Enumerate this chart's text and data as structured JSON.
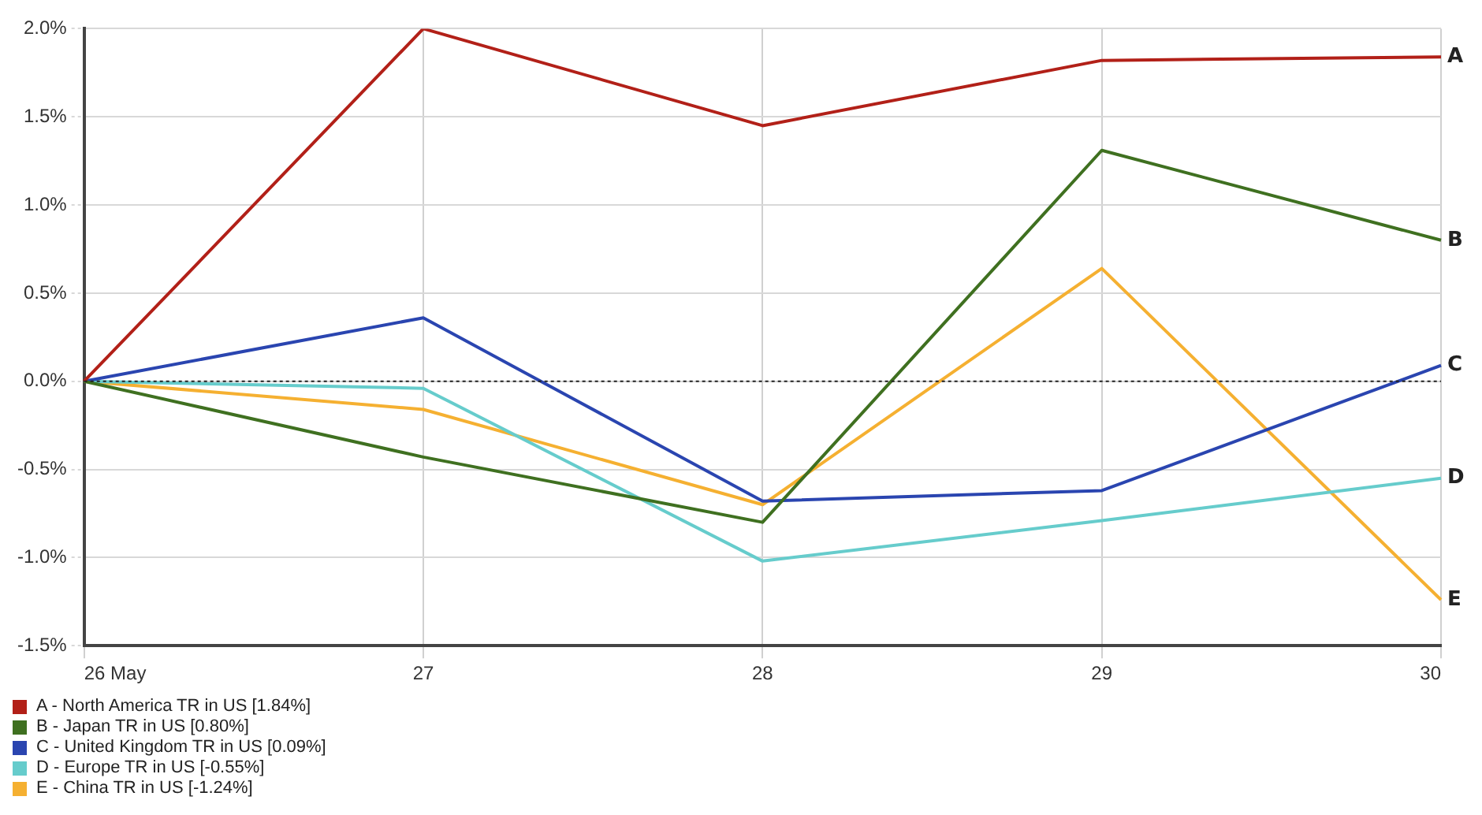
{
  "chart_data": {
    "type": "line",
    "categories": [
      "26 May",
      "27",
      "28",
      "29",
      "30"
    ],
    "series": [
      {
        "name": "A - North America TR in US [1.84%]",
        "color": "#b22018",
        "values": [
          0,
          2.0,
          1.45,
          1.82,
          1.84
        ]
      },
      {
        "name": "B - Japan TR in US [0.80%]",
        "color": "#3f7020",
        "values": [
          0,
          -0.43,
          -0.8,
          1.31,
          0.8
        ]
      },
      {
        "name": "C - United Kingdom TR in US [0.09%]",
        "color": "#2a45b0",
        "values": [
          0,
          0.36,
          -0.68,
          -0.62,
          0.09
        ]
      },
      {
        "name": "D - Europe TR in US [-0.55%]",
        "color": "#66cccc",
        "values": [
          0,
          -0.04,
          -1.02,
          -0.79,
          -0.55
        ]
      },
      {
        "name": "E - China TR in US [-1.24%]",
        "color": "#f5b031",
        "values": [
          0,
          -0.16,
          -0.7,
          0.64,
          -1.24
        ]
      }
    ],
    "ylim": [
      -1.5,
      2.0
    ],
    "yticks": [
      {
        "value": -1.5,
        "label": "-1.5%"
      },
      {
        "value": -1.0,
        "label": "-1.0%"
      },
      {
        "value": -0.5,
        "label": "-0.5%"
      },
      {
        "value": 0,
        "label": "0.0%"
      },
      {
        "value": 0.5,
        "label": "0.5%"
      },
      {
        "value": 1.0,
        "label": "1.0%"
      },
      {
        "value": 1.5,
        "label": "1.5%"
      },
      {
        "value": 2.0,
        "label": "2.0%"
      }
    ],
    "ref_lines": [
      {
        "axis": "y",
        "value": 0,
        "color": "#222222",
        "line_style": "dotted"
      }
    ],
    "annotations": [
      {
        "text": "A",
        "x": "30",
        "y": 1.84
      },
      {
        "text": "B",
        "x": "30",
        "y": 0.8
      },
      {
        "text": "C",
        "x": "30",
        "y": 0.09
      },
      {
        "text": "D",
        "x": "30",
        "y": -0.55
      },
      {
        "text": "E",
        "x": "30",
        "y": -1.24
      }
    ],
    "grid": true,
    "legend": "bottom left",
    "marker": "none",
    "line_style": "solid"
  }
}
